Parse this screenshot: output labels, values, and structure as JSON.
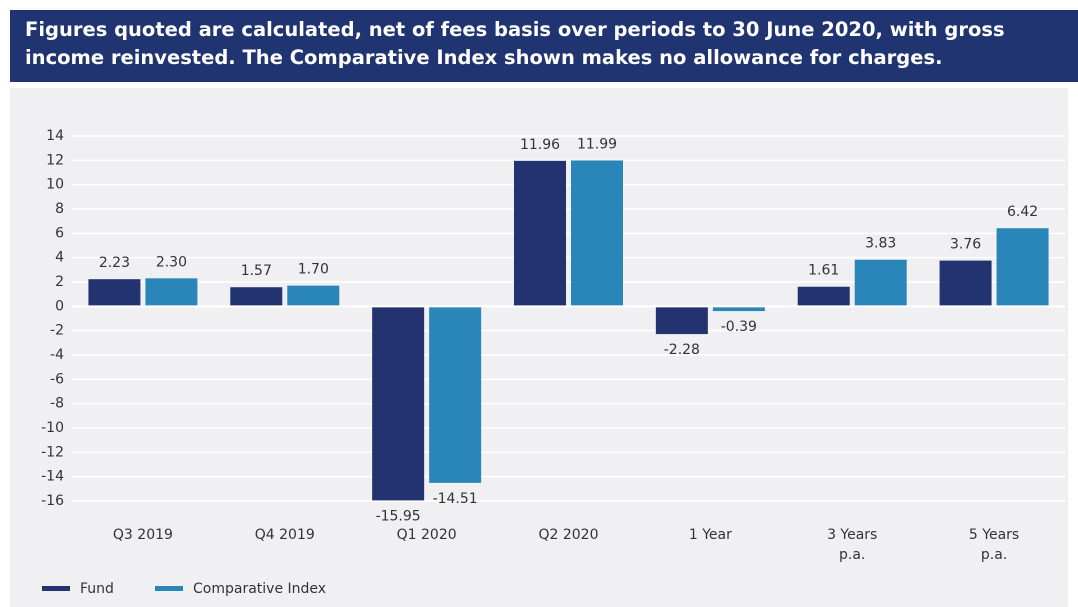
{
  "chart_data": {
    "type": "bar",
    "title": "Figures quoted are calculated, net of fees basis over periods to 30 June 2020, with gross income reinvested. The Comparative Index shown makes no allowance for charges.",
    "categories": [
      [
        "Q3 2019"
      ],
      [
        "Q4 2019"
      ],
      [
        "Q1 2020"
      ],
      [
        "Q2 2020"
      ],
      [
        "1 Year"
      ],
      [
        "3 Years",
        "p.a."
      ],
      [
        "5 Years",
        "p.a."
      ]
    ],
    "series": [
      {
        "name": "Fund",
        "color": "#22336f",
        "values": [
          2.23,
          1.57,
          -15.95,
          11.96,
          -2.28,
          1.61,
          3.76
        ],
        "value_labels": [
          "2.23",
          "1.57",
          "-15.95",
          "11.96",
          "-2.28",
          "1.61",
          "3.76"
        ]
      },
      {
        "name": "Comparative Index",
        "color": "#2a86b8",
        "values": [
          2.3,
          1.7,
          -14.51,
          11.99,
          -0.39,
          3.83,
          6.42
        ],
        "value_labels": [
          "2.30",
          "1.70",
          "-14.51",
          "11.99",
          "-0.39",
          "3.83",
          "6.42"
        ]
      }
    ],
    "ylim": [
      -16,
      14
    ],
    "yticks": [
      -16,
      -14,
      -12,
      -10,
      -8,
      -6,
      -4,
      -2,
      0,
      2,
      4,
      6,
      8,
      10,
      12,
      14
    ],
    "grid": true,
    "legend": "bottom"
  }
}
